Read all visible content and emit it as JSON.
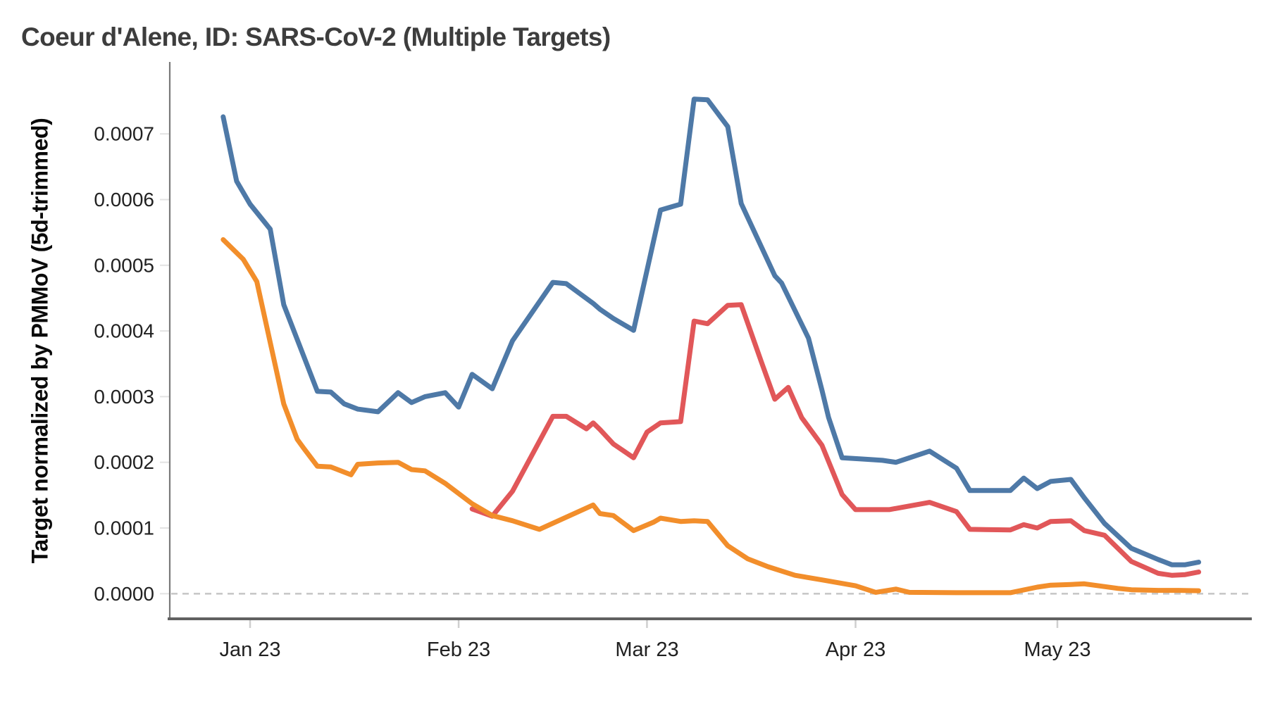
{
  "title": "Coeur d'Alene, ID: SARS-CoV-2 (Multiple Targets)",
  "colors": {
    "series_blue": "#4e79a7",
    "series_red": "#e15759",
    "series_orange": "#f28e2b",
    "title_text": "#3d3d3d",
    "tick_text": "#212121",
    "axis_left": "#7a7a7a",
    "axis_bottom": "#616161",
    "zero_dash": "#c8c8c8",
    "tick_mark": "#cfcfcf",
    "background": "#ffffff"
  },
  "chart_data": {
    "type": "line",
    "title": "Coeur d'Alene, ID: SARS-CoV-2 (Multiple Targets)",
    "xlabel": "",
    "ylabel": "Target normalized by PMMoV (5d-trimmed)",
    "legend": "none",
    "grid": "off",
    "zero_line": "dashed",
    "ylim": [
      0,
      0.00081
    ],
    "xlim": [
      "2022-12-20",
      "2023-05-30"
    ],
    "y_ticks": [
      {
        "label": "0.0000",
        "value": 0.0
      },
      {
        "label": "0.0001",
        "value": 0.0001
      },
      {
        "label": "0.0002",
        "value": 0.0002
      },
      {
        "label": "0.0003",
        "value": 0.0003
      },
      {
        "label": "0.0004",
        "value": 0.0004
      },
      {
        "label": "0.0005",
        "value": 0.0005
      },
      {
        "label": "0.0006",
        "value": 0.0006
      },
      {
        "label": "0.0007",
        "value": 0.0007
      }
    ],
    "x_ticks": [
      {
        "label": "Jan 23",
        "date": "2023-01-01"
      },
      {
        "label": "Feb 23",
        "date": "2023-02-01"
      },
      {
        "label": "Mar 23",
        "date": "2023-03-01"
      },
      {
        "label": "Apr 23",
        "date": "2023-04-01"
      },
      {
        "label": "May 23",
        "date": "2023-05-01"
      }
    ],
    "series": [
      {
        "name": "series-red",
        "color": "#e15759",
        "points": [
          [
            "2023-02-03",
            0.000129
          ],
          [
            "2023-02-06",
            0.000118
          ],
          [
            "2023-02-09",
            0.000156
          ],
          [
            "2023-02-15",
            0.00027
          ],
          [
            "2023-02-17",
            0.00027
          ],
          [
            "2023-02-20",
            0.000251
          ],
          [
            "2023-02-21",
            0.00026
          ],
          [
            "2023-02-22",
            0.00025
          ],
          [
            "2023-02-24",
            0.000228
          ],
          [
            "2023-02-27",
            0.000207
          ],
          [
            "2023-03-01",
            0.000246
          ],
          [
            "2023-03-03",
            0.00026
          ],
          [
            "2023-03-06",
            0.000262
          ],
          [
            "2023-03-08",
            0.000415
          ],
          [
            "2023-03-10",
            0.000411
          ],
          [
            "2023-03-13",
            0.000439
          ],
          [
            "2023-03-15",
            0.00044
          ],
          [
            "2023-03-18",
            0.000353
          ],
          [
            "2023-03-20",
            0.000296
          ],
          [
            "2023-03-22",
            0.000314
          ],
          [
            "2023-03-24",
            0.000268
          ],
          [
            "2023-03-27",
            0.000226
          ],
          [
            "2023-03-30",
            0.000151
          ],
          [
            "2023-04-01",
            0.000128
          ],
          [
            "2023-04-06",
            0.000128
          ],
          [
            "2023-04-12",
            0.000139
          ],
          [
            "2023-04-16",
            0.000125
          ],
          [
            "2023-04-18",
            9.8e-05
          ],
          [
            "2023-04-24",
            9.7e-05
          ],
          [
            "2023-04-26",
            0.000105
          ],
          [
            "2023-04-28",
            0.0001
          ],
          [
            "2023-04-30",
            0.00011
          ],
          [
            "2023-05-03",
            0.000111
          ],
          [
            "2023-05-05",
            9.6e-05
          ],
          [
            "2023-05-08",
            8.9e-05
          ],
          [
            "2023-05-12",
            4.9e-05
          ],
          [
            "2023-05-16",
            3.1e-05
          ],
          [
            "2023-05-18",
            2.8e-05
          ],
          [
            "2023-05-20",
            2.9e-05
          ],
          [
            "2023-05-22",
            3.3e-05
          ]
        ]
      },
      {
        "name": "series-orange",
        "color": "#f28e2b",
        "points": [
          [
            "2022-12-28",
            0.000539
          ],
          [
            "2022-12-31",
            0.000509
          ],
          [
            "2023-01-02",
            0.000475
          ],
          [
            "2023-01-06",
            0.000289
          ],
          [
            "2023-01-08",
            0.000235
          ],
          [
            "2023-01-09",
            0.000221
          ],
          [
            "2023-01-11",
            0.000194
          ],
          [
            "2023-01-13",
            0.000193
          ],
          [
            "2023-01-16",
            0.000181
          ],
          [
            "2023-01-17",
            0.000197
          ],
          [
            "2023-01-20",
            0.000199
          ],
          [
            "2023-01-23",
            0.0002
          ],
          [
            "2023-01-25",
            0.000189
          ],
          [
            "2023-01-27",
            0.000187
          ],
          [
            "2023-01-30",
            0.000168
          ],
          [
            "2023-02-03",
            0.000137
          ],
          [
            "2023-02-06",
            0.000119
          ],
          [
            "2023-02-09",
            0.000111
          ],
          [
            "2023-02-13",
            9.8e-05
          ],
          [
            "2023-02-21",
            0.000135
          ],
          [
            "2023-02-22",
            0.000122
          ],
          [
            "2023-02-24",
            0.000119
          ],
          [
            "2023-02-27",
            9.6e-05
          ],
          [
            "2023-03-02",
            0.000109
          ],
          [
            "2023-03-03",
            0.000115
          ],
          [
            "2023-03-06",
            0.00011
          ],
          [
            "2023-03-08",
            0.000111
          ],
          [
            "2023-03-10",
            0.00011
          ],
          [
            "2023-03-13",
            7.3e-05
          ],
          [
            "2023-03-16",
            5.3e-05
          ],
          [
            "2023-03-19",
            4.1e-05
          ],
          [
            "2023-03-23",
            2.8e-05
          ],
          [
            "2023-03-27",
            2.1e-05
          ],
          [
            "2023-04-01",
            1.2e-05
          ],
          [
            "2023-04-04",
            2e-06
          ],
          [
            "2023-04-07",
            7e-06
          ],
          [
            "2023-04-09",
            2e-06
          ],
          [
            "2023-04-16",
            1.5e-06
          ],
          [
            "2023-04-24",
            1.5e-06
          ],
          [
            "2023-04-28",
            1e-05
          ],
          [
            "2023-04-30",
            1.3e-05
          ],
          [
            "2023-05-03",
            1.4e-05
          ],
          [
            "2023-05-05",
            1.5e-05
          ],
          [
            "2023-05-10",
            8e-06
          ],
          [
            "2023-05-12",
            6e-06
          ],
          [
            "2023-05-16",
            5e-06
          ],
          [
            "2023-05-19",
            5e-06
          ],
          [
            "2023-05-22",
            4.5e-06
          ]
        ]
      },
      {
        "name": "series-blue",
        "color": "#4e79a7",
        "points": [
          [
            "2022-12-28",
            0.000726
          ],
          [
            "2022-12-30",
            0.000628
          ],
          [
            "2023-01-01",
            0.000593
          ],
          [
            "2023-01-04",
            0.000555
          ],
          [
            "2023-01-06",
            0.00044
          ],
          [
            "2023-01-11",
            0.000308
          ],
          [
            "2023-01-13",
            0.000307
          ],
          [
            "2023-01-15",
            0.000289
          ],
          [
            "2023-01-17",
            0.000281
          ],
          [
            "2023-01-20",
            0.000277
          ],
          [
            "2023-01-23",
            0.000306
          ],
          [
            "2023-01-25",
            0.000291
          ],
          [
            "2023-01-27",
            0.0003
          ],
          [
            "2023-01-30",
            0.000306
          ],
          [
            "2023-02-01",
            0.000284
          ],
          [
            "2023-02-03",
            0.000334
          ],
          [
            "2023-02-06",
            0.000312
          ],
          [
            "2023-02-09",
            0.000385
          ],
          [
            "2023-02-15",
            0.000474
          ],
          [
            "2023-02-17",
            0.000472
          ],
          [
            "2023-02-21",
            0.000442
          ],
          [
            "2023-02-22",
            0.000433
          ],
          [
            "2023-02-24",
            0.000419
          ],
          [
            "2023-02-27",
            0.000401
          ],
          [
            "2023-03-03",
            0.000584
          ],
          [
            "2023-03-06",
            0.000593
          ],
          [
            "2023-03-08",
            0.000753
          ],
          [
            "2023-03-10",
            0.000752
          ],
          [
            "2023-03-13",
            0.000711
          ],
          [
            "2023-03-15",
            0.000594
          ],
          [
            "2023-03-20",
            0.000484
          ],
          [
            "2023-03-21",
            0.000473
          ],
          [
            "2023-03-25",
            0.000389
          ],
          [
            "2023-03-27",
            0.00031
          ],
          [
            "2023-03-28",
            0.000268
          ],
          [
            "2023-03-30",
            0.000207
          ],
          [
            "2023-04-02",
            0.000205
          ],
          [
            "2023-04-05",
            0.000203
          ],
          [
            "2023-04-07",
            0.0002
          ],
          [
            "2023-04-12",
            0.000217
          ],
          [
            "2023-04-16",
            0.000191
          ],
          [
            "2023-04-18",
            0.000157
          ],
          [
            "2023-04-24",
            0.000157
          ],
          [
            "2023-04-26",
            0.000176
          ],
          [
            "2023-04-28",
            0.00016
          ],
          [
            "2023-04-30",
            0.000171
          ],
          [
            "2023-05-03",
            0.000174
          ],
          [
            "2023-05-05",
            0.000146
          ],
          [
            "2023-05-08",
            0.000107
          ],
          [
            "2023-05-12",
            6.9e-05
          ],
          [
            "2023-05-16",
            5.2e-05
          ],
          [
            "2023-05-18",
            4.4e-05
          ],
          [
            "2023-05-20",
            4.4e-05
          ],
          [
            "2023-05-22",
            4.8e-05
          ]
        ]
      }
    ]
  }
}
